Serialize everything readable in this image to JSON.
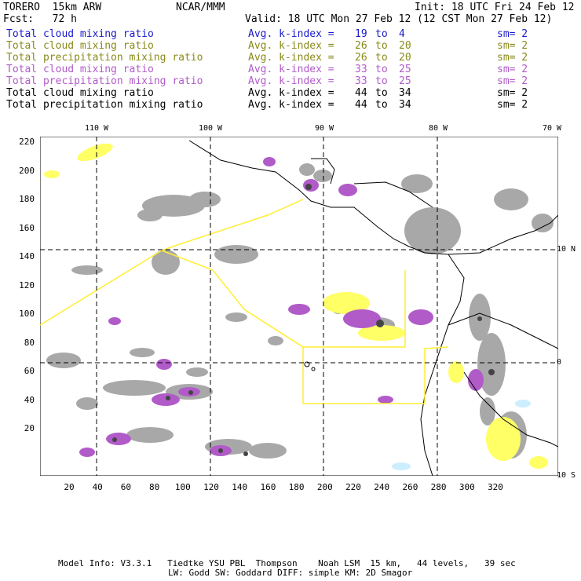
{
  "header": {
    "model": "TORERO  15km ARW",
    "center": "NCAR/MMM",
    "init": "Init: 18 UTC Fri 24 Feb 12",
    "fcst": "Fcst:   72 h",
    "valid": "Valid: 18 UTC Mon 27 Feb 12 (12 CST Mon 27 Feb 12)"
  },
  "legend": [
    {
      "field": "Total cloud mixing ratio",
      "idx_label": "Avg. k-index =",
      "from": "19",
      "to_word": "to",
      "to": "4",
      "sm": "sm= 2",
      "color": "#1a1acc"
    },
    {
      "field": "Total cloud mixing ratio",
      "idx_label": "Avg. k-index =",
      "from": "26",
      "to_word": "to",
      "to": "20",
      "sm": "sm= 2",
      "color": "#8a8a1a"
    },
    {
      "field": "Total precipitation mixing ratio",
      "idx_label": "Avg. k-index =",
      "from": "26",
      "to_word": "to",
      "to": "20",
      "sm": "sm= 2",
      "color": "#8a8a1a"
    },
    {
      "field": "Total cloud mixing ratio",
      "idx_label": "Avg. k-index =",
      "from": "33",
      "to_word": "to",
      "to": "25",
      "sm": "sm= 2",
      "color": "#b15bc9"
    },
    {
      "field": "Total precipitation mixing ratio",
      "idx_label": "Avg. k-index =",
      "from": "33",
      "to_word": "to",
      "to": "25",
      "sm": "sm= 2",
      "color": "#b15bc9"
    },
    {
      "field": "Total cloud mixing ratio",
      "idx_label": "Avg. k-index =",
      "from": "44",
      "to_word": "to",
      "to": "34",
      "sm": "sm= 2",
      "color": "#000000"
    },
    {
      "field": "Total precipitation mixing ratio",
      "idx_label": "Avg. k-index =",
      "from": "44",
      "to_word": "to",
      "to": "34",
      "sm": "sm= 2",
      "color": "#000000"
    }
  ],
  "axes": {
    "y_ticks": [
      "220",
      "200",
      "180",
      "160",
      "140",
      "120",
      "100",
      "80",
      "60",
      "40",
      "20"
    ],
    "x_ticks": [
      "20",
      "40",
      "60",
      "80",
      "100",
      "120",
      "140",
      "160",
      "180",
      "200",
      "220",
      "240",
      "260",
      "280",
      "300",
      "320"
    ],
    "lon_labels": [
      "110 W",
      "100 W",
      "90 W",
      "80 W",
      "70 W"
    ],
    "lat_labels": [
      "10 N",
      "0",
      "10 S"
    ]
  },
  "footer": {
    "line1": "Model Info: V3.3.1   Tiedtke YSU PBL  Thompson    Noah LSM  15 km,   44 levels,   39 sec",
    "line2": "LW: Godd SW: Goddard DIFF: simple KM: 2D Smagor"
  },
  "colors": {
    "cloud_gray": "#a8a8a8",
    "precip_purple": "#b15bc9",
    "cloud_yellow": "#ffff66",
    "precip_blue": "#cceeff",
    "domain_line": "#ffee33"
  }
}
